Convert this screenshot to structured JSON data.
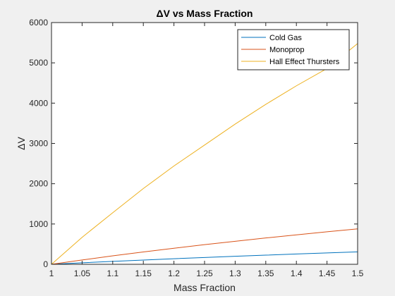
{
  "chart_data": {
    "type": "line",
    "title": "ΔV vs Mass Fraction",
    "xlabel": "Mass Fraction",
    "ylabel": "ΔV",
    "xlim": [
      1,
      1.5
    ],
    "ylim": [
      0,
      6000
    ],
    "xticks": [
      "1",
      "1.05",
      "1.1",
      "1.15",
      "1.2",
      "1.25",
      "1.3",
      "1.35",
      "1.4",
      "1.45",
      "1.5"
    ],
    "yticks": [
      "0",
      "1000",
      "2000",
      "3000",
      "4000",
      "5000",
      "6000"
    ],
    "grid": false,
    "legend_position": "top-right",
    "x": [
      1.0,
      1.05,
      1.1,
      1.15,
      1.2,
      1.25,
      1.3,
      1.35,
      1.4,
      1.45,
      1.5
    ],
    "series": [
      {
        "name": "Cold Gas",
        "color": "#0072BD",
        "values": [
          0,
          37,
          72,
          105,
          138,
          169,
          199,
          227,
          255,
          282,
          308
        ]
      },
      {
        "name": "Monoprop",
        "color": "#D95319",
        "values": [
          0,
          107,
          209,
          306,
          398,
          487,
          571,
          653,
          731,
          806,
          878
        ]
      },
      {
        "name": "Hall Effect Thursters",
        "color": "#EDB120",
        "values": [
          0,
          670,
          1280,
          1880,
          2440,
          2960,
          3480,
          3970,
          4430,
          4860,
          5480
        ]
      }
    ]
  }
}
